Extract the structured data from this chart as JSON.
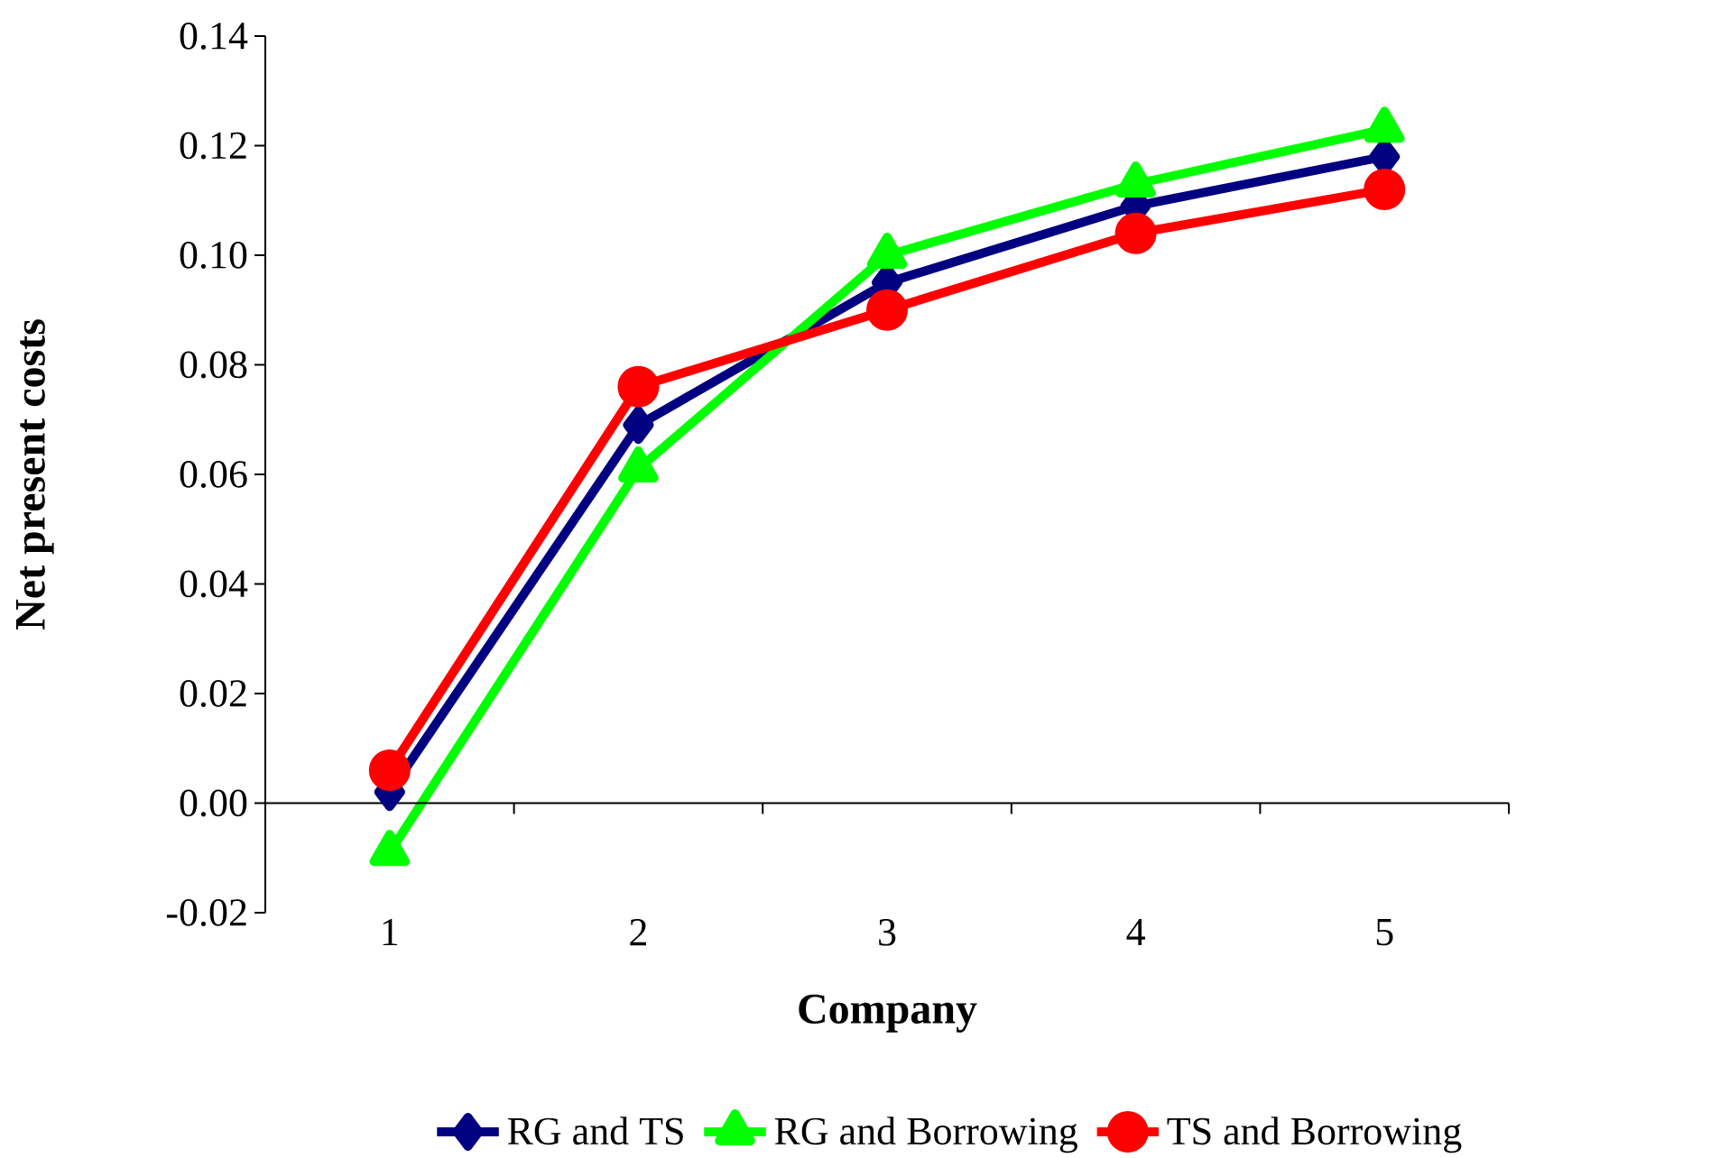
{
  "chart_data": {
    "type": "line",
    "xlabel": "Company",
    "ylabel": "Net present costs",
    "categories": [
      "1",
      "2",
      "3",
      "4",
      "5"
    ],
    "ylim": [
      -0.02,
      0.14
    ],
    "yticks": [
      {
        "value": -0.02,
        "label": "-0.02"
      },
      {
        "value": 0,
        "label": "0.00"
      },
      {
        "value": 0.02,
        "label": "0.02"
      },
      {
        "value": 0.04,
        "label": "0.04"
      },
      {
        "value": 0.06,
        "label": "0.06"
      },
      {
        "value": 0.08,
        "label": "0.08"
      },
      {
        "value": 0.1,
        "label": "0.10"
      },
      {
        "value": 0.12,
        "label": "0.12"
      },
      {
        "value": 0.14,
        "label": "0.14"
      }
    ],
    "legend": "bottom",
    "series": [
      {
        "name": "RG and TS",
        "color": "#000080",
        "marker": "diamond",
        "values": [
          0.002,
          0.069,
          0.095,
          0.109,
          0.118
        ]
      },
      {
        "name": "RG and Borrowing",
        "color": "#00ff00",
        "marker": "triangle",
        "values": [
          -0.009,
          0.061,
          0.1,
          0.113,
          0.123
        ]
      },
      {
        "name": "TS and Borrowing",
        "color": "#ff0000",
        "marker": "circle",
        "values": [
          0.006,
          0.076,
          0.09,
          0.104,
          0.112
        ]
      }
    ]
  }
}
